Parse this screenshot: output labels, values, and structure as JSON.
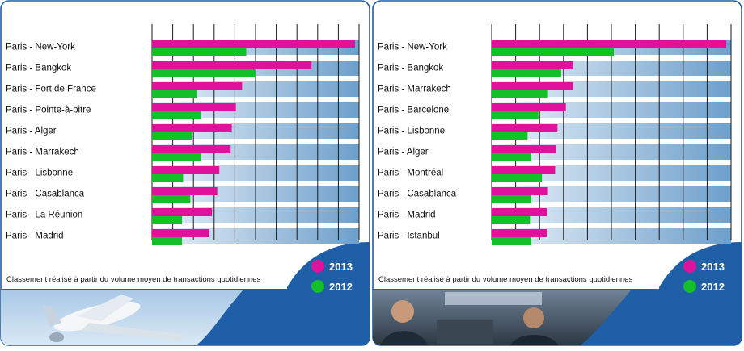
{
  "colors": {
    "y2013": "#e0119a",
    "y2012": "#13c02a",
    "track_light": "#eaf2f9",
    "track_dark": "#6d9fcb",
    "frame": "#1f5fa8",
    "gridline": "#1a1a1a"
  },
  "chart_data": [
    {
      "type": "bar",
      "orientation": "horizontal",
      "categories": [
        "Paris - New-York",
        "Paris - Bangkok",
        "Paris - Fort de France",
        "Paris - Pointe-à-pitre",
        "Paris - Alger",
        "Paris - Marrakech",
        "Paris - Lisbonne",
        "Paris - Casablanca",
        "Paris - La Réunion",
        "Paris - Madrid"
      ],
      "series": [
        {
          "name": "2013",
          "values": [
            98,
            77,
            43.5,
            40.5,
            38.5,
            38,
            32.5,
            31.5,
            29,
            27.5
          ]
        },
        {
          "name": "2012",
          "values": [
            45.5,
            50,
            21.5,
            23.5,
            19.5,
            23.5,
            15,
            18.5,
            14.5,
            14.5
          ]
        }
      ],
      "xlim": [
        0,
        100
      ],
      "grid": true,
      "note": "Classement réalisé à partir du volume moyen de transactions quotidiennes",
      "legend_position": "bottom-right",
      "photo": "airplane-photo"
    },
    {
      "type": "bar",
      "orientation": "horizontal",
      "categories": [
        "Paris - New-York",
        "Paris - Bangkok",
        "Paris - Marrakech",
        "Paris - Barcelone",
        "Paris - Lisbonne",
        "Paris - Alger",
        "Paris - Montréal",
        "Paris - Casablanca",
        "Paris - Madrid",
        "Paris - Istanbul"
      ],
      "series": [
        {
          "name": "2013",
          "values": [
            98,
            34,
            34,
            31,
            27.5,
            27,
            26.5,
            23.5,
            23,
            23
          ]
        },
        {
          "name": "2012",
          "values": [
            51,
            29,
            23.5,
            19.5,
            15,
            16.5,
            21,
            16.5,
            16,
            16.5
          ]
        }
      ],
      "xlim": [
        0,
        100
      ],
      "grid": true,
      "note": "Classement réalisé à partir du volume moyen de transactions quotidiennes",
      "legend_position": "bottom-right",
      "photo": "pilots-photo"
    }
  ]
}
